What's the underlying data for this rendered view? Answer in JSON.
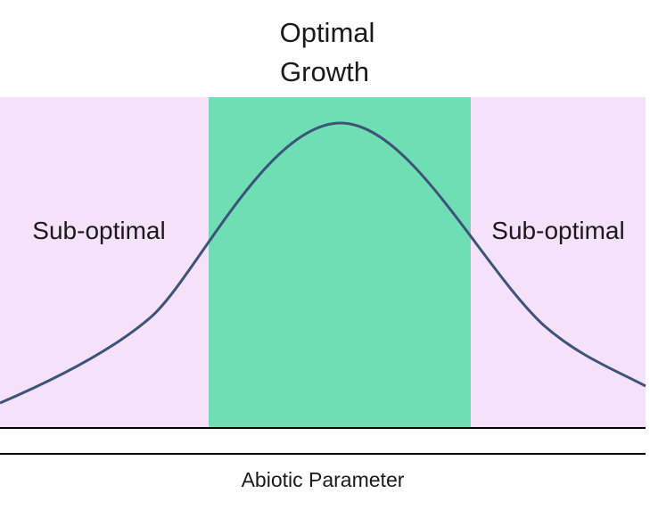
{
  "title": {
    "line1": "Optimal",
    "line2": "Growth"
  },
  "zones": {
    "left_label": "Sub-optimal",
    "right_label": "Sub-optimal"
  },
  "axis": {
    "xlabel": "Abiotic Parameter"
  },
  "colors": {
    "suboptimal_zone": "#f5e1fa",
    "optimal_zone": "#70deb4",
    "curve": "#3b5478",
    "axis_line": "#000000",
    "text": "#1a1a1a"
  }
}
